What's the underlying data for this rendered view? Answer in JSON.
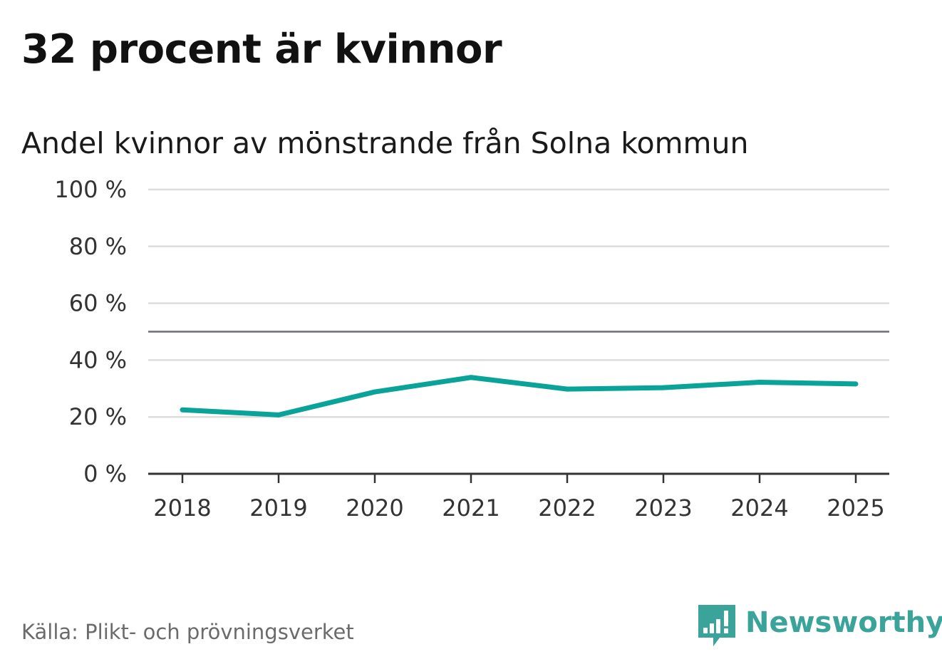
{
  "header": {
    "title": "32 procent är kvinnor",
    "subtitle": "Andel kvinnor av mönstrande från Solna kommun"
  },
  "footer": {
    "source": "Källa: Plikt- och prövningsverket",
    "brand": "Newsworthy"
  },
  "colors": {
    "line": "#0aa39a",
    "brand": "#3aa39a",
    "grid": "#dddddd",
    "reference": "#6e6e73",
    "axis": "#333333"
  },
  "chart_data": {
    "type": "line",
    "title": "32 procent är kvinnor",
    "subtitle": "Andel kvinnor av mönstrande från Solna kommun",
    "xlabel": "",
    "ylabel": "",
    "categories": [
      "2018",
      "2019",
      "2020",
      "2021",
      "2022",
      "2023",
      "2024",
      "2025"
    ],
    "series": [
      {
        "name": "Andel kvinnor",
        "values": [
          22.5,
          20.7,
          28.8,
          33.9,
          29.8,
          30.3,
          32.2,
          31.6
        ]
      }
    ],
    "ylim": [
      0,
      100
    ],
    "yticks": [
      0,
      20,
      40,
      60,
      80,
      100
    ],
    "ytick_labels": [
      "0 %",
      "20 %",
      "40 %",
      "60 %",
      "80 %",
      "100 %"
    ],
    "reference_line": 50,
    "grid": true,
    "legend": "none"
  }
}
